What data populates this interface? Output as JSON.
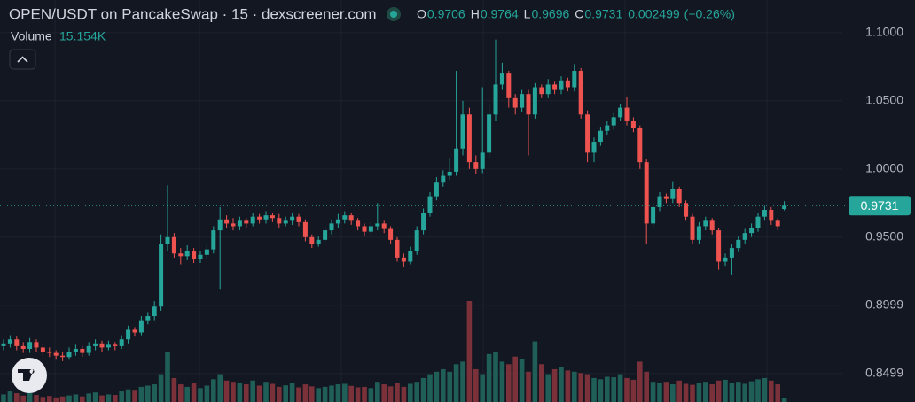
{
  "chart_data": {
    "type": "candlestick",
    "title": "OPEN/USDT on PancakeSwap · 15 · dexscreener.com",
    "ohlc_header": [
      {
        "key": "O",
        "value": 0.9706
      },
      {
        "key": "H",
        "value": 0.9764
      },
      {
        "key": "L",
        "value": 0.9696
      },
      {
        "key": "C",
        "value": 0.9731
      }
    ],
    "change": 0.002499,
    "change_pct": "(+0.26%)",
    "volume_title": "Volume",
    "last_volume": {
      "value": 15154,
      "label": "15.154K"
    },
    "last_price": 0.9731,
    "ylim": [
      0.829,
      1.124
    ],
    "yticks": [
      {
        "value": 0.8499,
        "label": "0.8499"
      },
      {
        "value": 0.8999,
        "label": "0.8999"
      },
      {
        "value": 0.95,
        "label": "0.9500"
      },
      {
        "value": 1.0,
        "label": "1.0000"
      },
      {
        "value": 1.05,
        "label": "1.0500"
      },
      {
        "value": 1.1,
        "label": "1.1000"
      }
    ],
    "grid": true,
    "up_color": "#26a69a",
    "down_color": "#ef5350",
    "volume_up_color": "#1f5f58",
    "volume_down_color": "#7a3139",
    "open": [
      0.87,
      0.872,
      0.875,
      0.87,
      0.868,
      0.873,
      0.869,
      0.866,
      0.865,
      0.863,
      0.862,
      0.866,
      0.868,
      0.865,
      0.87,
      0.872,
      0.869,
      0.871,
      0.87,
      0.875,
      0.882,
      0.88,
      0.889,
      0.892,
      0.899,
      0.945,
      0.95,
      0.938,
      0.936,
      0.94,
      0.934,
      0.937,
      0.941,
      0.955,
      0.963,
      0.96,
      0.958,
      0.962,
      0.96,
      0.965,
      0.963,
      0.966,
      0.964,
      0.96,
      0.962,
      0.965,
      0.961,
      0.95,
      0.945,
      0.948,
      0.955,
      0.96,
      0.963,
      0.966,
      0.962,
      0.958,
      0.954,
      0.958,
      0.96,
      0.956,
      0.948,
      0.935,
      0.932,
      0.94,
      0.955,
      0.968,
      0.98,
      0.99,
      0.995,
      0.998,
      1.015,
      1.04,
      1.005,
      1.0,
      1.012,
      1.04,
      1.062,
      1.07,
      1.052,
      1.045,
      1.055,
      1.04,
      1.06,
      1.055,
      1.062,
      1.058,
      1.065,
      1.06,
      1.072,
      1.04,
      1.012,
      1.02,
      1.028,
      1.032,
      1.038,
      1.045,
      1.035,
      1.03,
      1.005,
      0.96,
      0.972,
      0.98,
      0.978,
      0.985,
      0.975,
      0.965,
      0.948,
      0.958,
      0.962,
      0.955,
      0.932,
      0.935,
      0.942,
      0.948,
      0.953,
      0.957,
      0.965,
      0.97,
      0.962,
      0.9706
    ],
    "high": [
      0.875,
      0.878,
      0.877,
      0.873,
      0.876,
      0.875,
      0.872,
      0.869,
      0.867,
      0.866,
      0.869,
      0.871,
      0.87,
      0.873,
      0.875,
      0.874,
      0.874,
      0.873,
      0.878,
      0.885,
      0.884,
      0.892,
      0.895,
      0.903,
      0.952,
      0.988,
      0.953,
      0.942,
      0.944,
      0.942,
      0.94,
      0.945,
      0.958,
      0.972,
      0.966,
      0.964,
      0.965,
      0.964,
      0.968,
      0.967,
      0.969,
      0.968,
      0.967,
      0.965,
      0.968,
      0.967,
      0.963,
      0.952,
      0.951,
      0.958,
      0.963,
      0.967,
      0.969,
      0.968,
      0.964,
      0.96,
      0.961,
      0.975,
      0.962,
      0.958,
      0.95,
      0.938,
      0.943,
      0.958,
      0.971,
      0.983,
      0.994,
      0.999,
      1.008,
      1.072,
      1.05,
      1.045,
      1.01,
      1.06,
      1.048,
      1.095,
      1.078,
      1.072,
      1.055,
      1.058,
      1.058,
      1.063,
      1.062,
      1.066,
      1.064,
      1.068,
      1.067,
      1.077,
      1.074,
      1.043,
      1.023,
      1.031,
      1.035,
      1.041,
      1.048,
      1.053,
      1.038,
      1.032,
      1.007,
      0.975,
      0.983,
      0.982,
      0.991,
      0.987,
      0.977,
      0.967,
      0.961,
      0.965,
      0.964,
      0.957,
      0.938,
      0.945,
      0.951,
      0.956,
      0.96,
      0.968,
      0.973,
      0.972,
      0.964,
      0.9764
    ],
    "low": [
      0.867,
      0.869,
      0.867,
      0.865,
      0.865,
      0.866,
      0.863,
      0.862,
      0.86,
      0.859,
      0.86,
      0.863,
      0.862,
      0.863,
      0.867,
      0.866,
      0.867,
      0.867,
      0.868,
      0.872,
      0.877,
      0.878,
      0.886,
      0.889,
      0.896,
      0.94,
      0.935,
      0.93,
      0.933,
      0.931,
      0.931,
      0.934,
      0.938,
      0.912,
      0.957,
      0.955,
      0.955,
      0.957,
      0.958,
      0.96,
      0.96,
      0.961,
      0.957,
      0.958,
      0.959,
      0.958,
      0.947,
      0.942,
      0.943,
      0.946,
      0.952,
      0.957,
      0.96,
      0.959,
      0.955,
      0.951,
      0.952,
      0.955,
      0.953,
      0.945,
      0.932,
      0.928,
      0.93,
      0.937,
      0.952,
      0.965,
      0.977,
      0.987,
      0.992,
      0.995,
      1.01,
      1.0,
      0.996,
      0.997,
      1.008,
      1.035,
      1.058,
      1.045,
      1.04,
      1.042,
      1.01,
      1.037,
      1.052,
      1.052,
      1.055,
      1.055,
      1.057,
      1.057,
      1.037,
      1.005,
      1.005,
      1.017,
      1.025,
      1.029,
      1.035,
      1.032,
      1.027,
      1.0,
      0.945,
      0.957,
      0.969,
      0.975,
      0.975,
      0.972,
      0.962,
      0.945,
      0.945,
      0.955,
      0.952,
      0.926,
      0.929,
      0.922,
      0.939,
      0.945,
      0.95,
      0.954,
      0.962,
      0.959,
      0.955,
      0.9696
    ],
    "close": [
      0.872,
      0.875,
      0.87,
      0.868,
      0.873,
      0.869,
      0.866,
      0.865,
      0.863,
      0.862,
      0.866,
      0.868,
      0.865,
      0.87,
      0.872,
      0.869,
      0.871,
      0.87,
      0.875,
      0.882,
      0.88,
      0.889,
      0.892,
      0.899,
      0.945,
      0.95,
      0.938,
      0.936,
      0.94,
      0.934,
      0.937,
      0.941,
      0.955,
      0.963,
      0.96,
      0.958,
      0.962,
      0.96,
      0.965,
      0.963,
      0.966,
      0.964,
      0.96,
      0.962,
      0.965,
      0.961,
      0.95,
      0.945,
      0.948,
      0.955,
      0.96,
      0.963,
      0.966,
      0.962,
      0.958,
      0.954,
      0.958,
      0.96,
      0.956,
      0.948,
      0.935,
      0.932,
      0.94,
      0.955,
      0.968,
      0.98,
      0.99,
      0.995,
      0.998,
      1.015,
      1.04,
      1.005,
      1.0,
      1.012,
      1.04,
      1.062,
      1.07,
      1.052,
      1.045,
      1.055,
      1.04,
      1.06,
      1.055,
      1.062,
      1.058,
      1.065,
      1.06,
      1.072,
      1.04,
      1.012,
      1.02,
      1.028,
      1.032,
      1.038,
      1.045,
      1.035,
      1.03,
      1.005,
      0.96,
      0.972,
      0.98,
      0.978,
      0.985,
      0.975,
      0.965,
      0.948,
      0.958,
      0.962,
      0.955,
      0.932,
      0.935,
      0.942,
      0.948,
      0.953,
      0.957,
      0.965,
      0.97,
      0.962,
      0.958,
      0.9731
    ],
    "volume": [
      30000,
      42000,
      35000,
      25000,
      38000,
      28000,
      20000,
      24000,
      18000,
      22000,
      26000,
      30000,
      22000,
      34000,
      38000,
      26000,
      30000,
      28000,
      42000,
      50000,
      45000,
      60000,
      65000,
      70000,
      110000,
      200000,
      95000,
      70000,
      60000,
      75000,
      55000,
      65000,
      90000,
      110000,
      85000,
      80000,
      75000,
      70000,
      85000,
      65000,
      80000,
      72000,
      60000,
      66000,
      75000,
      58000,
      70000,
      62000,
      55000,
      60000,
      65000,
      70000,
      72000,
      64000,
      58000,
      60000,
      55000,
      80000,
      70000,
      62000,
      75000,
      60000,
      72000,
      80000,
      95000,
      110000,
      120000,
      130000,
      120000,
      150000,
      160000,
      400000,
      130000,
      110000,
      190000,
      200000,
      160000,
      150000,
      180000,
      170000,
      120000,
      240000,
      150000,
      110000,
      130000,
      140000,
      125000,
      120000,
      115000,
      110000,
      95000,
      90000,
      100000,
      98000,
      110000,
      95000,
      88000,
      160000,
      120000,
      80000,
      75000,
      80000,
      70000,
      85000,
      72000,
      68000,
      75000,
      80000,
      70000,
      85000,
      88000,
      75000,
      80000,
      72000,
      82000,
      90000,
      95000,
      85000,
      70000,
      15154
    ]
  }
}
